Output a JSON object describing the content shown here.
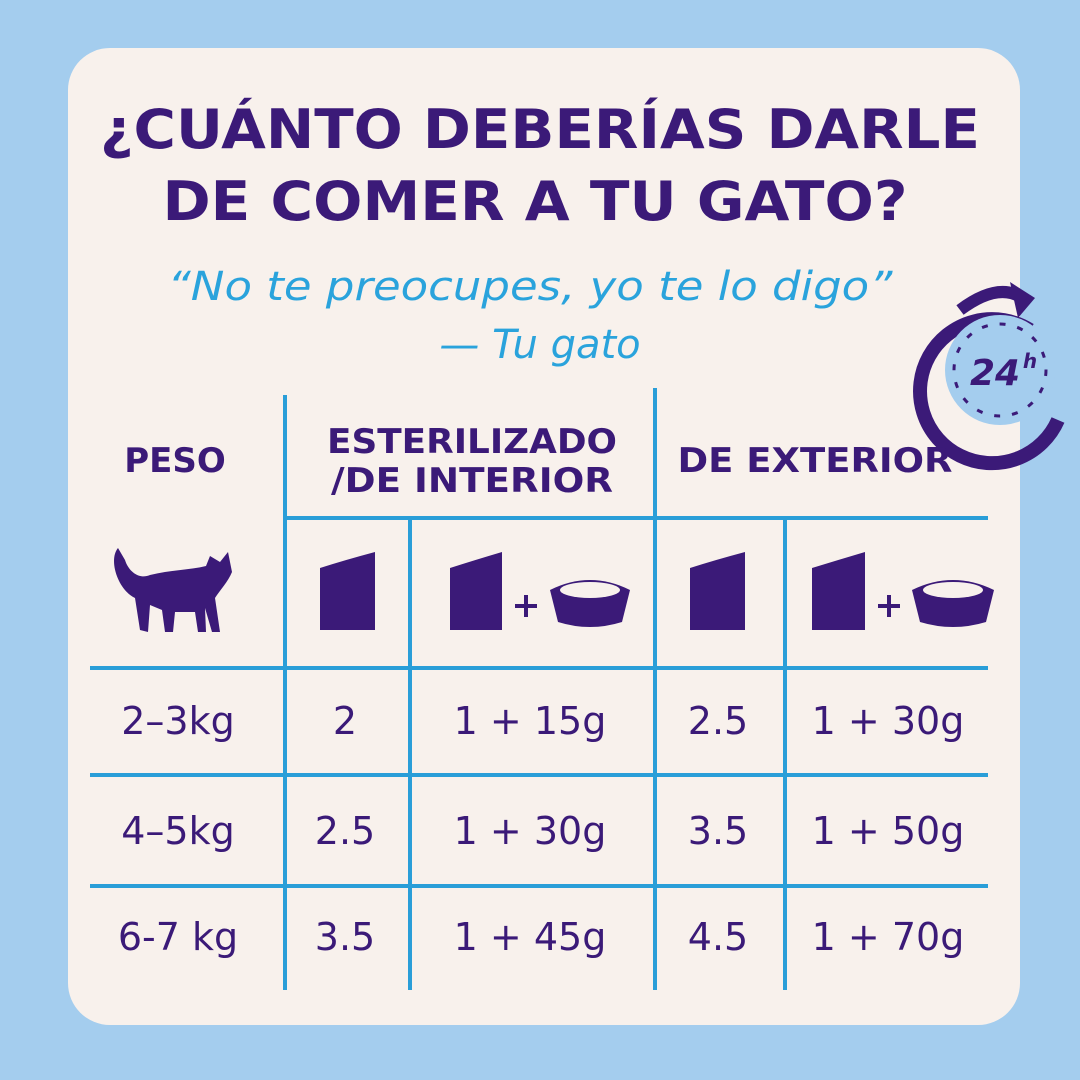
{
  "header": {
    "title": [
      "¿CUÁNTO DEBERÍAS DARLE",
      "DE COMER A TU GATO?"
    ],
    "quote": "“No te preocupes, yo te lo digo”",
    "attribution": "— Tu gato"
  },
  "badge": {
    "number": "24",
    "unit": "h"
  },
  "table": {
    "headers": {
      "weight": "PESO",
      "sterilized": [
        "ESTERILIZADO",
        "/DE INTERIOR"
      ],
      "outdoor": "DE EXTERIOR"
    },
    "rows": [
      [
        "2–3kg",
        "2",
        "1 + 15g",
        "2.5",
        "1 + 30g"
      ],
      [
        "4–5kg",
        "2.5",
        "1 + 30g",
        "3.5",
        "1 + 50g"
      ],
      [
        "6-7 kg",
        "3.5",
        "1 + 45g",
        "4.5",
        "1 + 70g"
      ]
    ]
  }
}
